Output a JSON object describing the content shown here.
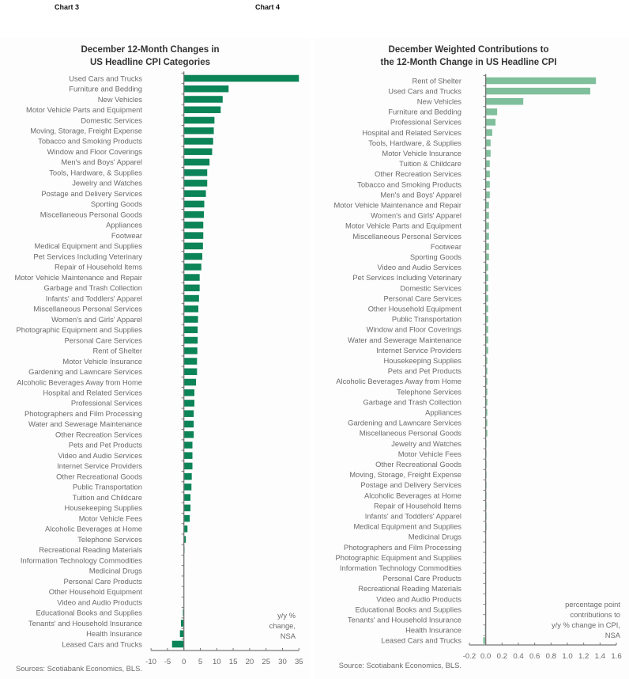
{
  "chart_data": [
    {
      "id": "chart3",
      "chart_label": "Chart 3",
      "type": "bar",
      "orientation": "horizontal",
      "title": [
        "December 12-Month Changes in",
        "US Headline CPI Categories"
      ],
      "xlabel": "",
      "ylabel": "",
      "xlim": [
        -10,
        35
      ],
      "xticks": [
        -10,
        -5,
        0,
        5,
        10,
        15,
        20,
        25,
        30,
        35
      ],
      "xtick_labels": [
        "-10",
        "-5",
        "0",
        "5",
        "10",
        "15",
        "20",
        "25",
        "30",
        "35"
      ],
      "annotation": [
        "y/y %",
        "change,",
        "NSA"
      ],
      "source": "Sources: Scotiabank Economics, BLS.",
      "color": "#0b8457",
      "grid": false,
      "categories": [
        "Used Cars and Trucks",
        "Furniture and Bedding",
        "New Vehicles",
        "Motor Vehicle Parts and Equipment",
        "Domestic Services",
        "Moving, Storage, Freight Expense",
        "Tobacco and Smoking Products",
        "Window and Floor Coverings",
        "Men's and Boys' Apparel",
        "Tools, Hardware, & Supplies",
        "Jewelry and Watches",
        "Postage and Delivery Services",
        "Sporting Goods",
        "Miscellaneous Personal Goods",
        "Appliances",
        "Footwear",
        "Medical Equipment and Supplies",
        "Pet Services Including Veterinary",
        "Repair of Household Items",
        "Motor Vehicle Maintenance and Repair",
        "Garbage and Trash Collection",
        "Infants' and Toddlers' Apparel",
        "Miscellaneous Personal Services",
        "Women's and Girls' Apparel",
        "Photographic Equipment and Supplies",
        "Personal Care Services",
        "Rent of Shelter",
        "Motor Vehicle Insurance",
        "Gardening and Lawncare Services",
        "Alcoholic Beverages Away from Home",
        "Hospital and Related Services",
        "Professional Services",
        "Photographers and Film Processing",
        "Water and Sewerage Maintenance",
        "Other Recreation Services",
        "Pets and Pet Products",
        "Video and Audio Services",
        "Internet Service Providers",
        "Other Recreational Goods",
        "Public Transportation",
        "Tuition and Childcare",
        "Housekeeping Supplies",
        "Motor Vehicle Fees",
        "Alcoholic Beverages at Home",
        "Telephone Services",
        "Recreational Reading Materials",
        "Information Technology Commodities",
        "Medicinal Drugs",
        "Personal Care Products",
        "Other Household Equipment",
        "Video and Audio Products",
        "Educational Books and Supplies",
        "Tenants' and Household Insurance",
        "Health Insurance",
        "Leased Cars and Trucks"
      ],
      "values": [
        35.0,
        13.6,
        11.8,
        11.2,
        9.3,
        9.1,
        8.9,
        8.6,
        7.8,
        7.1,
        7.1,
        6.7,
        6.2,
        6.1,
        5.9,
        5.9,
        5.8,
        5.6,
        5.3,
        4.8,
        4.8,
        4.6,
        4.4,
        4.3,
        4.2,
        4.2,
        4.1,
        4.0,
        4.0,
        3.7,
        3.2,
        3.2,
        3.0,
        3.0,
        3.0,
        2.6,
        2.6,
        2.6,
        2.4,
        2.3,
        2.0,
        2.0,
        1.8,
        1.1,
        0.6,
        0.2,
        0.1,
        0.1,
        0.0,
        0.0,
        0.0,
        -0.3,
        -0.9,
        -1.2,
        -3.6
      ]
    },
    {
      "id": "chart4",
      "chart_label": "Chart 4",
      "type": "bar",
      "orientation": "horizontal",
      "title": [
        "December Weighted Contributions to",
        "the 12-Month Change in US Headline CPI"
      ],
      "xlabel": "",
      "ylabel": "",
      "xlim": [
        -0.2,
        1.6
      ],
      "xticks": [
        -0.2,
        0.0,
        0.2,
        0.4,
        0.6,
        0.8,
        1.0,
        1.2,
        1.4,
        1.6
      ],
      "xtick_labels": [
        "-0.2",
        "0.0",
        "0.2",
        "0.4",
        "0.6",
        "0.8",
        "1.0",
        "1.2",
        "1.4",
        "1.6"
      ],
      "annotation": [
        "percentage point",
        "contributions to",
        "y/y % change in CPI,",
        "NSA"
      ],
      "source": "Source: Scotiabank Economics, BLS.",
      "color": "#80bf9b",
      "grid": false,
      "categories": [
        "Rent of Shelter",
        "Used Cars and Trucks",
        "New Vehicles",
        "Furniture and Bedding",
        "Professional Services",
        "Hospital and Related Services",
        "Tools, Hardware, & Supplies",
        "Motor Vehicle Insurance",
        "Tuition & Childcare",
        "Other Recreation Services",
        "Tobacco and Smoking Products",
        "Men's and Boys' Apparel",
        "Motor Vehicle Maintenance and Repair",
        "Women's and Girls' Apparel",
        "Motor Vehicle Parts and Equipment",
        "Miscellaneous Personal Services",
        "Footwear",
        "Sporting Goods",
        "Video and Audio Services",
        "Pet Services Including Veterinary",
        "Domestic Services",
        "Personal Care Services",
        "Other Household Equipment",
        "Public Transportation",
        "Window and Floor Coverings",
        "Water and Sewerage Maintenance",
        "Internet Service Providers",
        "Housekeeping Supplies",
        "Pets and Pet Products",
        "Alcoholic Beverages Away from Home",
        "Telephone Services",
        "Garbage and Trash Collection",
        "Appliances",
        "Gardening and Lawncare Services",
        "Miscellaneous Personal Goods",
        "Jewelry and Watches",
        "Motor Vehicle Fees",
        "Other Recreational Goods",
        "Moving, Storage, Freight Expense",
        "Postage and Delivery Services",
        "Alcoholic Beverages at Home",
        "Repair of Household Items",
        "Infants' and Toddlers' Apparel",
        "Medical Equipment and Supplies",
        "Medicinal Drugs",
        "Photographers and Film Processing",
        "Photographic Equipment and Supplies",
        "Information Technology Commodities",
        "Personal Care Products",
        "Recreational Reading Materials",
        "Video and Audio Products",
        "Educational Books and Supplies",
        "Tenants' and Household Insurance",
        "Health Insurance",
        "Leased Cars and Trucks"
      ],
      "values": [
        1.35,
        1.28,
        0.46,
        0.14,
        0.12,
        0.08,
        0.06,
        0.06,
        0.05,
        0.05,
        0.05,
        0.05,
        0.04,
        0.04,
        0.04,
        0.04,
        0.04,
        0.04,
        0.03,
        0.03,
        0.03,
        0.03,
        0.03,
        0.03,
        0.03,
        0.03,
        0.03,
        0.02,
        0.02,
        0.02,
        0.02,
        0.02,
        0.02,
        0.02,
        0.02,
        0.01,
        0.01,
        0.01,
        0.01,
        0.01,
        0.01,
        0.01,
        0.01,
        0.01,
        0.0,
        0.0,
        0.0,
        0.0,
        0.0,
        0.0,
        0.0,
        0.0,
        0.0,
        -0.01,
        -0.03
      ]
    }
  ]
}
